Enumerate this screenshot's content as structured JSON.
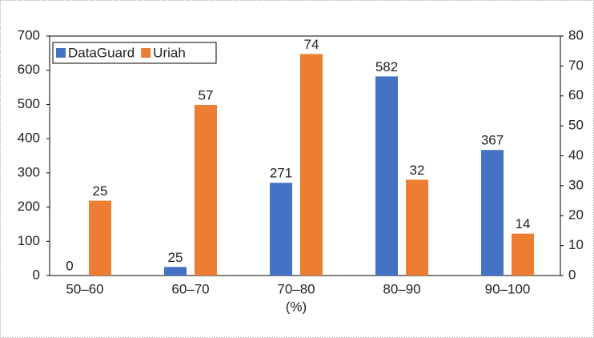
{
  "chart_data": {
    "type": "bar",
    "x_label": "(%)",
    "categories": [
      "50–60",
      "60–70",
      "70–80",
      "80–90",
      "90–100"
    ],
    "series": [
      {
        "name": "DataGuard",
        "color": "#4472c4",
        "values": [
          0,
          25,
          271,
          582,
          367
        ]
      },
      {
        "name": "Uriah",
        "color": "#ed7d31",
        "values": [
          25,
          57,
          74,
          32,
          14
        ],
        "axis": "y2"
      }
    ],
    "ylim": [
      0,
      700
    ],
    "yticks": [
      0,
      100,
      200,
      300,
      400,
      500,
      600,
      700
    ],
    "y2lim": [
      0,
      80
    ],
    "y2ticks": [
      0,
      10,
      20,
      30,
      40,
      50,
      60,
      70,
      80
    ],
    "legend": "top-left"
  }
}
